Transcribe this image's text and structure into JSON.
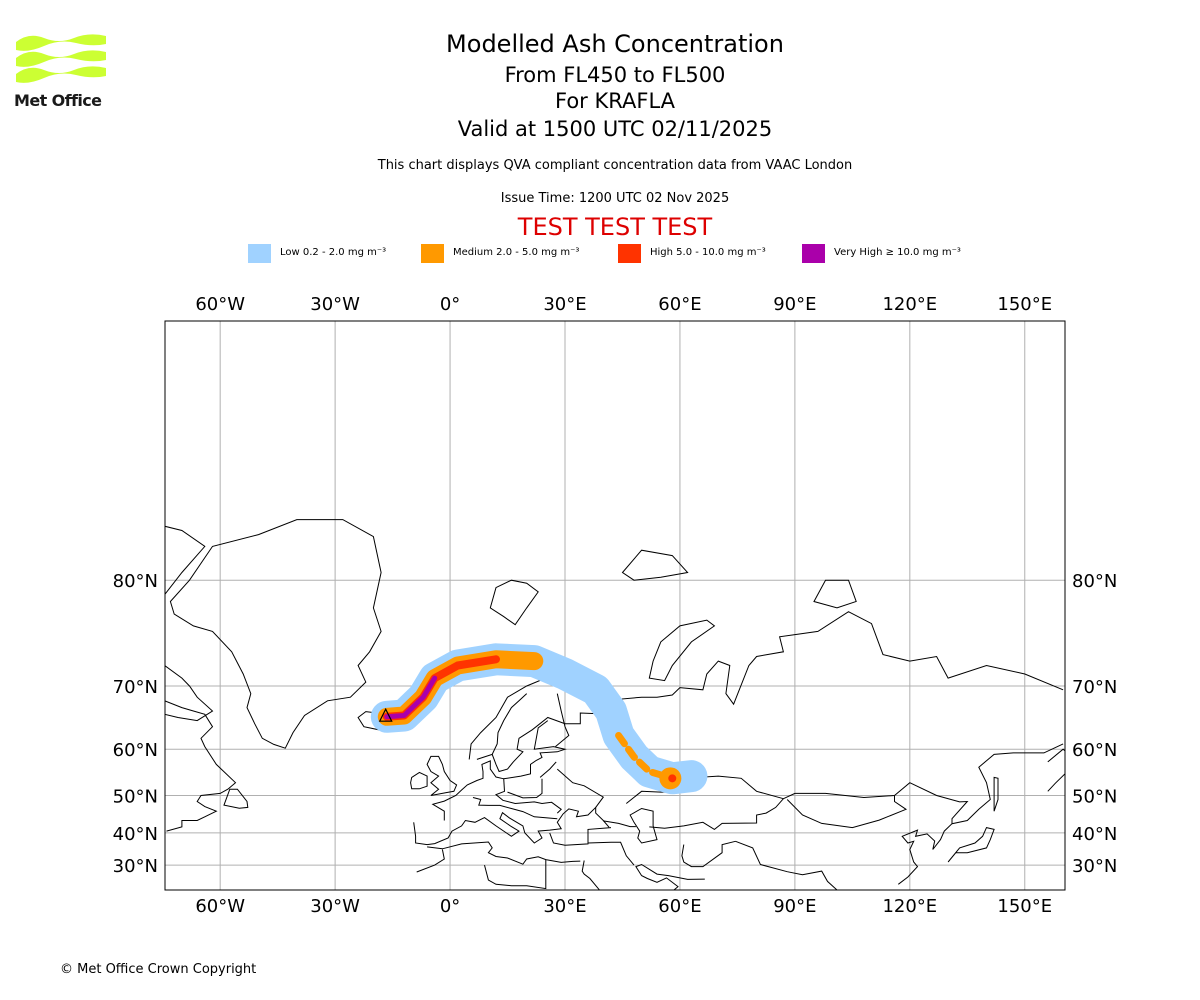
{
  "organisation": {
    "name": "Met Office",
    "logo_color": "#ccff33"
  },
  "header": {
    "title": "Modelled Ash Concentration",
    "levels": "From FL450 to FL500",
    "volcano": "For KRAFLA",
    "valid": "Valid at 1500 UTC 02/11/2025",
    "subtitle": "This chart displays QVA compliant concentration data from VAAC London",
    "issue": "Issue Time: 1200 UTC 02 Nov 2025",
    "test_banner": "TEST TEST TEST",
    "test_color": "#dd0000"
  },
  "legend": [
    {
      "label": "Low 0.2 - 2.0 mg m⁻³",
      "color": "#a0d2ff"
    },
    {
      "label": "Medium 2.0 - 5.0 mg m⁻³",
      "color": "#ff9900"
    },
    {
      "label": "High 5.0 - 10.0 mg m⁻³",
      "color": "#ff3300"
    },
    {
      "label": "Very High  ≥  10.0 mg m⁻³",
      "color": "#aa00aa"
    }
  ],
  "chart_data": {
    "type": "map",
    "projection": "Mercator",
    "lon_range": [
      -74.4,
      160.5
    ],
    "lat_range": [
      21.5,
      88.2
    ],
    "lon_ticks": [
      -60,
      -30,
      0,
      30,
      60,
      90,
      120,
      150
    ],
    "lon_tick_labels": [
      "60°W",
      "30°W",
      "0°",
      "30°E",
      "60°E",
      "90°E",
      "120°E",
      "150°E"
    ],
    "lat_ticks": [
      80,
      70,
      60,
      50,
      40,
      30
    ],
    "lat_tick_labels": [
      "80°N",
      "70°N",
      "60°N",
      "50°N",
      "40°N",
      "30°N"
    ],
    "grid": true,
    "ash_plume": {
      "source": "KRAFLA",
      "source_lon": -16.8,
      "source_lat": 65.7,
      "track": [
        {
          "lon": -16.5,
          "lat": 65.6
        },
        {
          "lon": -12,
          "lat": 65.8
        },
        {
          "lon": -7,
          "lat": 68.5
        },
        {
          "lon": -4,
          "lat": 71
        },
        {
          "lon": 2,
          "lat": 72.5
        },
        {
          "lon": 12,
          "lat": 73.2
        },
        {
          "lon": 22,
          "lat": 73.0
        },
        {
          "lon": 30,
          "lat": 71.5
        },
        {
          "lon": 38,
          "lat": 69.5
        },
        {
          "lon": 42,
          "lat": 66.5
        },
        {
          "lon": 44,
          "lat": 62.5
        },
        {
          "lon": 48,
          "lat": 58.5
        },
        {
          "lon": 52,
          "lat": 55.5
        },
        {
          "lon": 58,
          "lat": 54
        },
        {
          "lon": 63,
          "lat": 54.5
        }
      ],
      "categories_present": [
        "Low",
        "Medium",
        "High",
        "Very High"
      ]
    }
  },
  "footer": {
    "copyright": "© Met Office Crown Copyright"
  }
}
